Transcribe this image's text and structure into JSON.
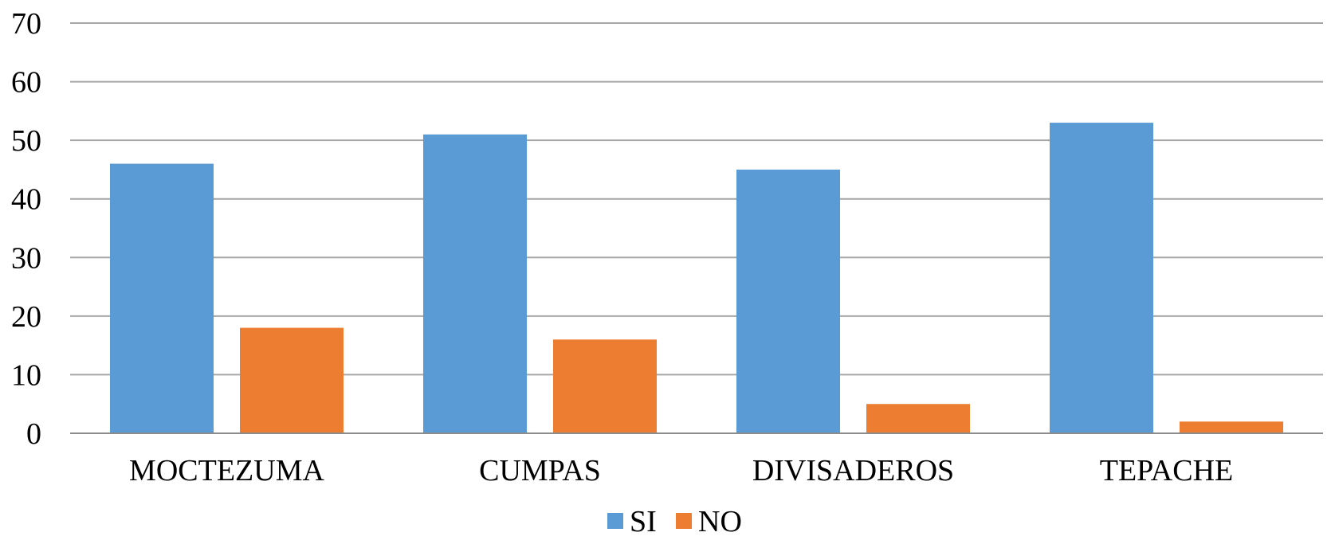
{
  "chart_data": {
    "type": "bar",
    "categories": [
      "MOCTEZUMA",
      "CUMPAS",
      "DIVISADEROS",
      "TEPACHE"
    ],
    "series": [
      {
        "name": "SI",
        "color": "#5b9bd5",
        "values": [
          46,
          51,
          45,
          53
        ]
      },
      {
        "name": "NO",
        "color": "#ed7d31",
        "values": [
          18,
          16,
          5,
          2
        ]
      }
    ],
    "ylim": [
      0,
      70
    ],
    "yticks": [
      0,
      10,
      20,
      30,
      40,
      50,
      60,
      70
    ],
    "grid": true,
    "legend_position": "bottom-center"
  }
}
